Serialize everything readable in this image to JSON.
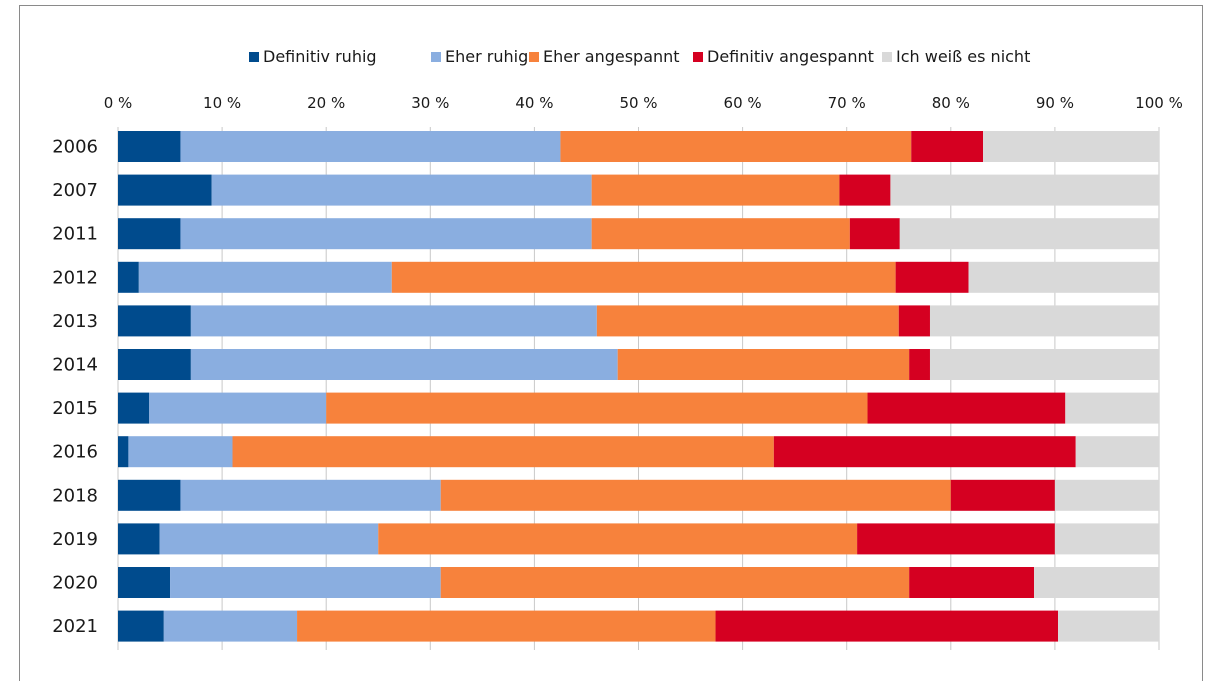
{
  "chart_data": {
    "type": "bar",
    "orientation": "horizontal",
    "stacked": true,
    "title": "",
    "xlabel": "",
    "ylabel": "",
    "xlim": [
      0,
      100
    ],
    "x_ticks": [
      "0 %",
      "10 %",
      "20 %",
      "30 %",
      "40 %",
      "50 %",
      "60 %",
      "70 %",
      "80 %",
      "90 %",
      "100 %"
    ],
    "x_tick_values": [
      0,
      10,
      20,
      30,
      40,
      50,
      60,
      70,
      80,
      90,
      100
    ],
    "grid": true,
    "legend_position": "top",
    "categories": [
      "2006",
      "2007",
      "2011",
      "2012",
      "2013",
      "2014",
      "2015",
      "2016",
      "2018",
      "2019",
      "2020",
      "2021"
    ],
    "series": [
      {
        "name": "Definitiv ruhig",
        "color": "#004b8d",
        "values": [
          6,
          9,
          6,
          2,
          7,
          7,
          3,
          1,
          6,
          4,
          5,
          4.4
        ]
      },
      {
        "name": "Eher ruhig",
        "color": "#8aaee0",
        "values": [
          36.5,
          36.5,
          39.5,
          24.3,
          39,
          41,
          17,
          10,
          25,
          21,
          26,
          12.8
        ]
      },
      {
        "name": "Eher angespannt",
        "color": "#f7823c",
        "values": [
          33.7,
          23.8,
          24.8,
          48.4,
          29,
          28,
          52,
          52,
          49,
          46,
          45,
          40.2
        ]
      },
      {
        "name": "Definitiv angespannt",
        "color": "#d50021",
        "values": [
          6.9,
          4.9,
          4.8,
          7,
          3,
          2,
          19,
          29,
          10,
          19,
          12,
          32.9
        ]
      },
      {
        "name": "Ich weiß es nicht",
        "color": "#d9d9d9",
        "values": [
          16.9,
          25.8,
          24.9,
          18.3,
          22,
          22,
          9,
          8,
          10,
          10,
          12,
          9.7
        ]
      }
    ]
  }
}
